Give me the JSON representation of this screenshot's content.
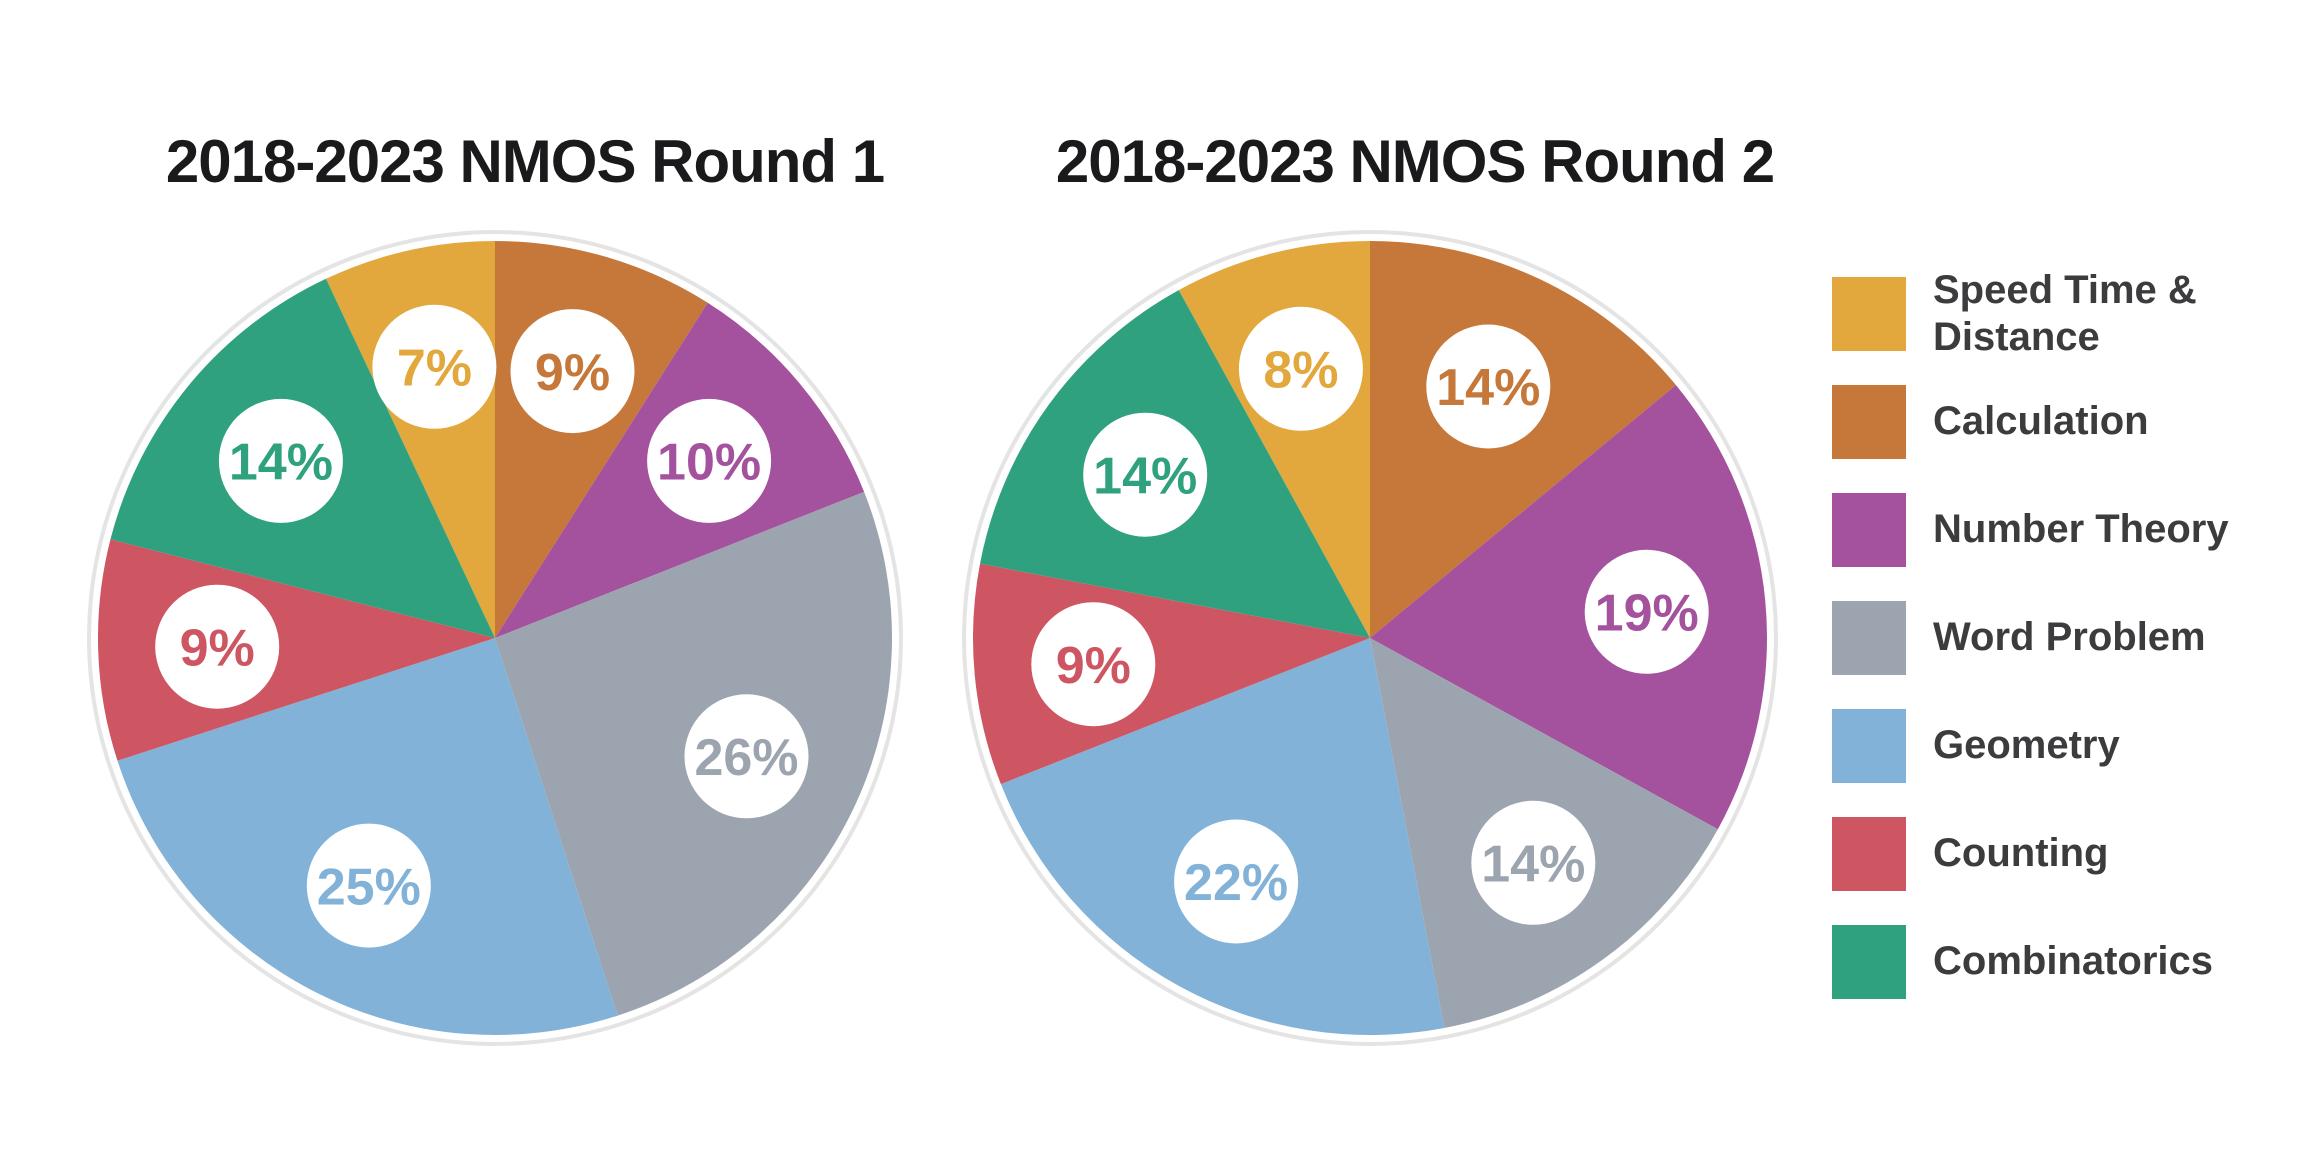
{
  "page": {
    "background": "#ffffff"
  },
  "chart_data": [
    {
      "type": "pie",
      "title": "2018-2023 NMOS Round 1",
      "unit": "%",
      "categories": [
        "Speed Time & Distance",
        "Calculation",
        "Number Theory",
        "Word Problem",
        "Geometry",
        "Counting",
        "Combinatorics"
      ],
      "values": [
        7,
        9,
        10,
        26,
        25,
        9,
        14
      ],
      "labels": [
        "7%",
        "9%",
        "10%",
        "26%",
        "25%",
        "9%",
        "14%"
      ],
      "colors": [
        "#E2A83D",
        "#C5783A",
        "#A4519E",
        "#9CA4AF",
        "#82B2D7",
        "#CD5662",
        "#2FA17E"
      ],
      "start_angle_rule": "slice boundary between Speed Time & Distance and Calculation sits at 12 o'clock; slices run clockwise in legend order starting with Calculation",
      "legend_position": "right",
      "value_labels": "inside white circles, text colored per slice"
    },
    {
      "type": "pie",
      "title": "2018-2023 NMOS Round 2",
      "unit": "%",
      "categories": [
        "Speed Time & Distance",
        "Calculation",
        "Number Theory",
        "Word Problem",
        "Geometry",
        "Counting",
        "Combinatorics"
      ],
      "values": [
        8,
        14,
        19,
        14,
        22,
        9,
        14
      ],
      "labels": [
        "8%",
        "14%",
        "19%",
        "14%",
        "22%",
        "9%",
        "14%"
      ],
      "colors": [
        "#E2A83D",
        "#C5783A",
        "#A4519E",
        "#9CA4AF",
        "#82B2D7",
        "#CD5662",
        "#2FA17E"
      ],
      "start_angle_rule": "slice boundary between Speed Time & Distance and Calculation sits at 12 o'clock; slices run clockwise in legend order starting with Calculation",
      "legend_position": "right",
      "value_labels": "inside white circles, text colored per slice"
    }
  ],
  "legend": {
    "items": [
      {
        "label": "Speed Time & Distance",
        "color": "#E2A83D"
      },
      {
        "label": "Calculation",
        "color": "#C5783A"
      },
      {
        "label": "Number Theory",
        "color": "#A4519E"
      },
      {
        "label": "Word Problem",
        "color": "#9CA4AF"
      },
      {
        "label": "Geometry",
        "color": "#82B2D7"
      },
      {
        "label": "Counting",
        "color": "#CD5662"
      },
      {
        "label": "Combinatorics",
        "color": "#2FA17E"
      }
    ]
  },
  "style": {
    "title_color": "#1a1a1c",
    "legend_text_color": "#3c3c3e",
    "pie_ring_inner": "#ffffff",
    "pie_ring_outer": "#e4e4e4",
    "label_circle_fill": "#ffffff"
  }
}
